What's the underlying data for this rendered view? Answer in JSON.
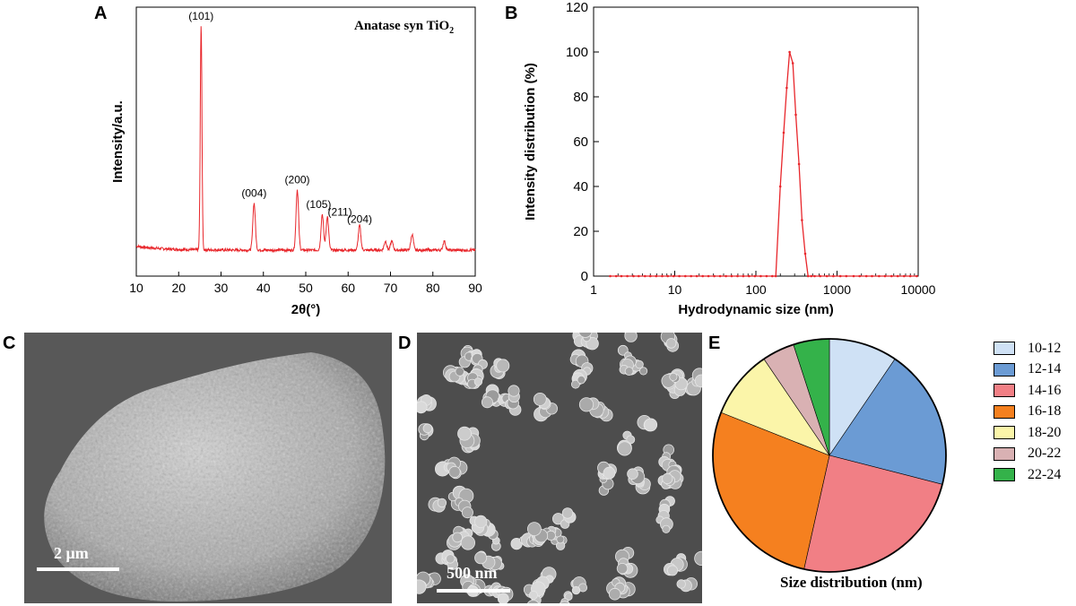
{
  "panels": {
    "a": {
      "letter": "A",
      "title": "Anatase syn TiO",
      "title_sub": "2"
    },
    "b": {
      "letter": "B"
    },
    "c": {
      "letter": "C",
      "scale_label": "2 μm"
    },
    "d": {
      "letter": "D",
      "scale_label": "500 nm"
    },
    "e": {
      "letter": "E",
      "caption": "Size distribution (nm)"
    }
  },
  "chart_data": [
    {
      "type": "line",
      "panel": "A",
      "title": "Anatase syn TiO2",
      "xlabel": "2θ(°)",
      "ylabel": "Intensity/a.u.",
      "xlim": [
        10,
        90
      ],
      "xticks": [
        "10",
        "20",
        "30",
        "40",
        "50",
        "60",
        "70",
        "80",
        "90"
      ],
      "color": "#e8262b",
      "peaks": [
        {
          "x": 25.3,
          "intensity": 1.0,
          "label": "(101)"
        },
        {
          "x": 37.8,
          "intensity": 0.21,
          "label": "(004)"
        },
        {
          "x": 48.0,
          "intensity": 0.27,
          "label": "(200)"
        },
        {
          "x": 53.9,
          "intensity": 0.16,
          "label": "(105)"
        },
        {
          "x": 55.1,
          "intensity": 0.15,
          "label": "(211)"
        },
        {
          "x": 62.7,
          "intensity": 0.11,
          "label": "(204)"
        },
        {
          "x": 68.8,
          "intensity": 0.04,
          "label": ""
        },
        {
          "x": 70.3,
          "intensity": 0.04,
          "label": ""
        },
        {
          "x": 75.1,
          "intensity": 0.07,
          "label": ""
        },
        {
          "x": 82.7,
          "intensity": 0.04,
          "label": ""
        }
      ]
    },
    {
      "type": "line",
      "panel": "B",
      "title": "",
      "xlabel": "Hydrodynamic size (nm)",
      "ylabel": "Intensity distribution (%)",
      "xscale": "log",
      "xlim": [
        1,
        10000
      ],
      "ylim": [
        0,
        120
      ],
      "xticks": [
        "1",
        "10",
        "100",
        "1000",
        "10000"
      ],
      "yticks": [
        "0",
        "20",
        "40",
        "60",
        "80",
        "100",
        "120"
      ],
      "color": "#e8262b",
      "x": [
        1.6,
        1.9,
        2.2,
        2.6,
        3.1,
        3.6,
        4.3,
        5.0,
        5.9,
        7.0,
        8.2,
        9.7,
        11.4,
        13.5,
        15.9,
        18.7,
        22.1,
        26.0,
        30.7,
        36.2,
        42.7,
        50.3,
        59.3,
        69.9,
        82.5,
        97.2,
        114.6,
        135.2,
        159.4,
        176,
        200,
        220,
        240,
        260,
        285,
        310,
        340,
        370,
        405,
        440,
        480,
        530,
        620,
        750,
        900,
        1100,
        1300,
        1600,
        1900,
        2300,
        2700,
        3300,
        3900,
        4700,
        5600,
        6700,
        8000,
        9600
      ],
      "y": [
        0,
        0,
        0,
        0,
        0,
        0,
        0,
        0,
        0,
        0,
        0,
        0,
        0,
        0,
        0,
        0,
        0,
        0,
        0,
        0,
        0,
        0,
        0,
        0,
        0,
        0,
        0,
        0,
        0,
        0,
        40,
        64,
        84,
        100,
        95,
        72,
        50,
        25,
        10,
        0,
        0,
        0,
        0,
        0,
        0,
        0,
        0,
        0,
        0,
        0,
        0,
        0,
        0,
        0,
        0,
        0,
        0,
        0
      ]
    },
    {
      "type": "pie",
      "panel": "E",
      "title": "Size distribution (nm)",
      "labels": [
        "10-12",
        "12-14",
        "14-16",
        "16-18",
        "18-20",
        "20-22",
        "22-24"
      ],
      "values": [
        9.5,
        19.5,
        24.5,
        27.5,
        9.5,
        4.5,
        5.0
      ],
      "colors": [
        "#cfe1f5",
        "#6b9bd4",
        "#f17f85",
        "#f5801f",
        "#fbf5a9",
        "#d9b1b3",
        "#34b24a"
      ]
    }
  ]
}
